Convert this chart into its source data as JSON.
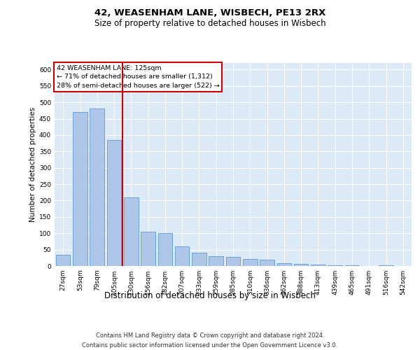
{
  "title": "42, WEASENHAM LANE, WISBECH, PE13 2RX",
  "subtitle": "Size of property relative to detached houses in Wisbech",
  "xlabel": "Distribution of detached houses by size in Wisbech",
  "ylabel": "Number of detached properties",
  "footer_line1": "Contains HM Land Registry data © Crown copyright and database right 2024.",
  "footer_line2": "Contains public sector information licensed under the Open Government Licence v3.0.",
  "categories": [
    "27sqm",
    "53sqm",
    "79sqm",
    "105sqm",
    "130sqm",
    "156sqm",
    "182sqm",
    "207sqm",
    "233sqm",
    "259sqm",
    "285sqm",
    "310sqm",
    "336sqm",
    "362sqm",
    "388sqm",
    "413sqm",
    "439sqm",
    "465sqm",
    "491sqm",
    "516sqm",
    "542sqm"
  ],
  "bar_heights": [
    35,
    470,
    480,
    385,
    210,
    105,
    100,
    60,
    40,
    30,
    28,
    22,
    20,
    8,
    7,
    5,
    3,
    2,
    1,
    2,
    1
  ],
  "bar_color": "#aec6e8",
  "bar_edgecolor": "#5b9bd5",
  "vline_position": 3.5,
  "vline_color": "#cc0000",
  "annotation_text": "42 WEASENHAM LANE: 125sqm\n← 71% of detached houses are smaller (1,312)\n28% of semi-detached houses are larger (522) →",
  "annotation_box_facecolor": "#ffffff",
  "annotation_box_edgecolor": "#cc0000",
  "plot_bg_color": "#dce9f7",
  "ylim_max": 620,
  "yticks": [
    0,
    50,
    100,
    150,
    200,
    250,
    300,
    350,
    400,
    450,
    500,
    550,
    600
  ],
  "title_fontsize": 9.5,
  "subtitle_fontsize": 8.5,
  "ylabel_fontsize": 7.5,
  "xlabel_fontsize": 8.5,
  "tick_fontsize": 6.5,
  "annot_fontsize": 6.8,
  "footer_fontsize": 6.0
}
